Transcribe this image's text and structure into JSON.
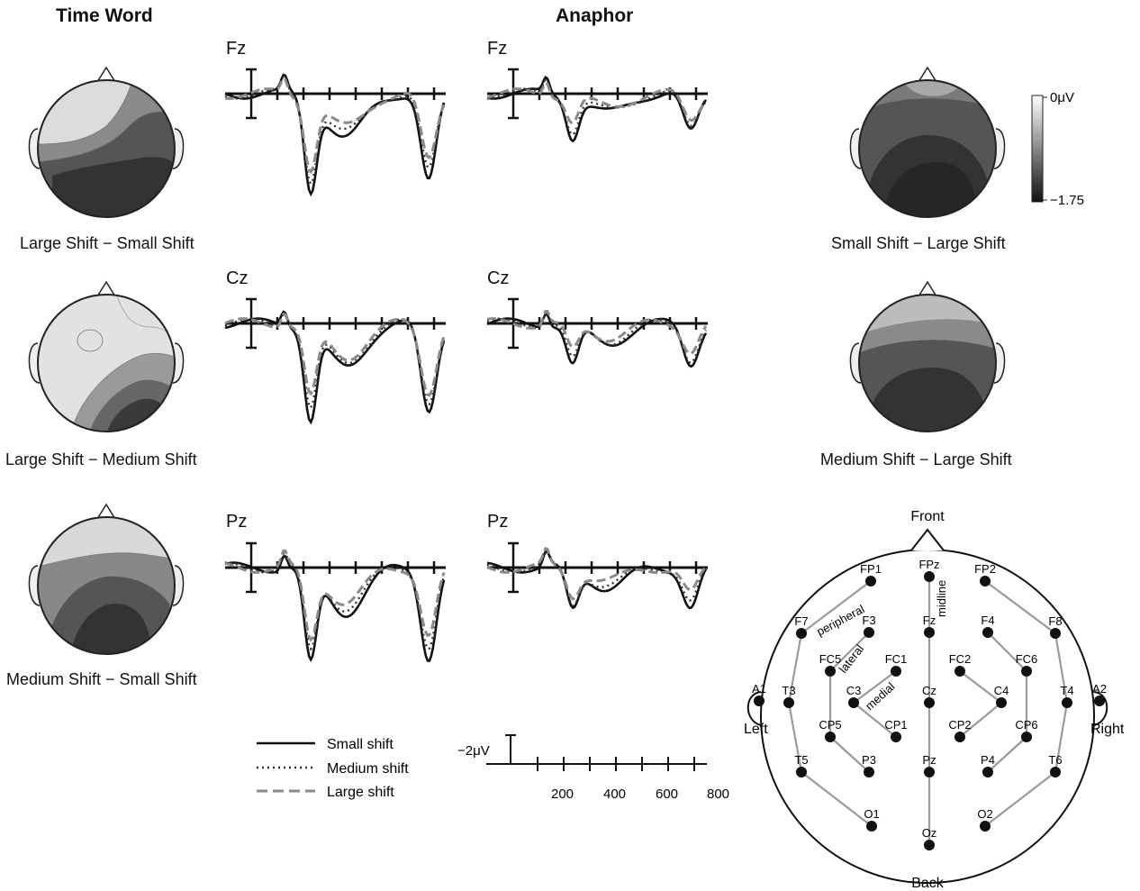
{
  "headings": {
    "time_word": "Time Word",
    "anaphor": "Anaphor"
  },
  "channels": [
    "Fz",
    "Cz",
    "Pz"
  ],
  "left_maps": [
    "Large Shift − Small Shift",
    "Large Shift − Medium Shift",
    "Medium Shift − Small Shift"
  ],
  "right_maps": [
    "Small Shift − Large Shift",
    "Medium Shift − Large Shift"
  ],
  "colorbar": {
    "top": "0μV",
    "bottom": "−1.75"
  },
  "legend": [
    "Small shift",
    "Medium shift",
    "Large shift"
  ],
  "scale": {
    "amplitude": "−2μV",
    "ticks": [
      "200",
      "400",
      "600",
      "800"
    ]
  },
  "montage": {
    "front": "Front",
    "back": "Back",
    "left": "Left",
    "right": "Right",
    "groups": [
      "peripheral",
      "lateral",
      "medial",
      "midline"
    ],
    "electrodes": [
      "FP1",
      "FPz",
      "FP2",
      "F7",
      "F3",
      "Fz",
      "F4",
      "F8",
      "FC5",
      "FC1",
      "FC2",
      "FC6",
      "A1",
      "T3",
      "C3",
      "Cz",
      "C4",
      "T4",
      "A2",
      "CP5",
      "CP1",
      "CP2",
      "CP6",
      "T5",
      "P3",
      "Pz",
      "P4",
      "T6",
      "O1",
      "Oz",
      "O2"
    ]
  },
  "colors": {
    "small": "#111111",
    "medium": "#333333",
    "large": "#8a8a8a",
    "montage_line": "#9a9a9a"
  }
}
